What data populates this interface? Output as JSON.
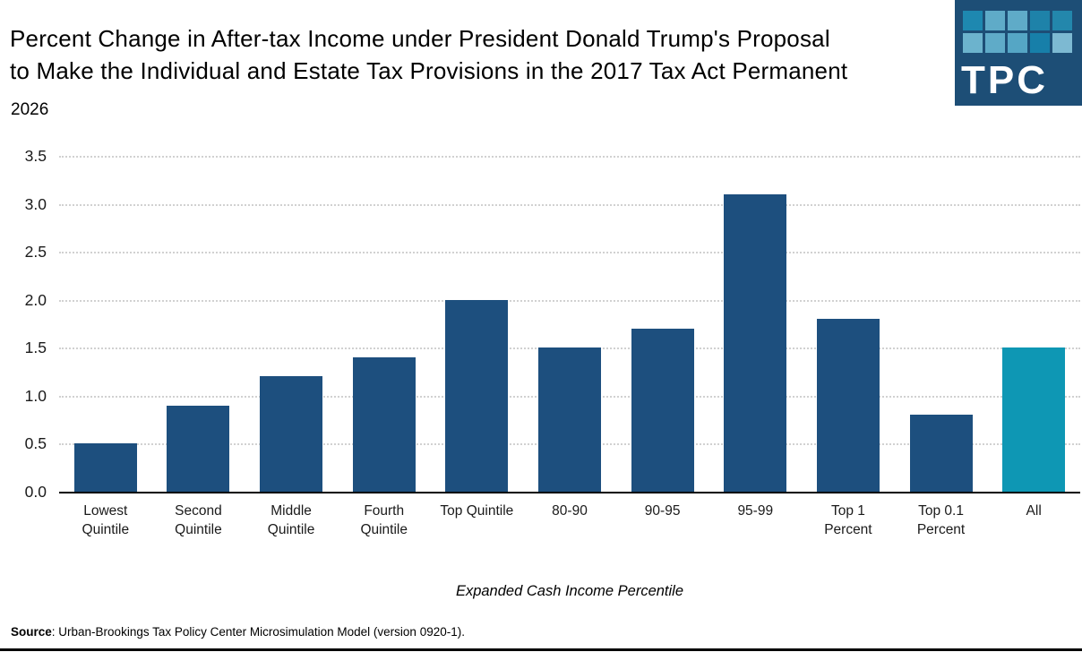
{
  "header": {
    "title_lines": [
      "Percent Change in After-tax Income under President Donald Trump's Proposal",
      "to Make the Individual and Estate Tax Provisions in the 2017 Tax Act Permanent"
    ],
    "subtitle": "2026"
  },
  "logo": {
    "text": "TPC",
    "background": "#1D4E76",
    "square_colors": [
      "#1E88B0",
      "#5FABC8",
      "#5FABC8",
      "#1E82A9",
      "#2387AC",
      "#6CB3CD",
      "#5FABC8",
      "#55A6C5",
      "#177FA9",
      "#7DB9D2"
    ]
  },
  "chart_data": {
    "type": "bar",
    "title": "Percent Change in After-tax Income under President Donald Trump's Proposal to Make the Individual and Estate Tax Provisions in the 2017 Tax Act Permanent",
    "subtitle": "2026",
    "categories": [
      "Lowest Quintile",
      "Second Quintile",
      "Middle Quintile",
      "Fourth Quintile",
      "Top Quintile",
      "80-90",
      "90-95",
      "95-99",
      "Top 1 Percent",
      "Top 0.1 Percent",
      "All"
    ],
    "category_lines": [
      [
        "Lowest",
        "Quintile"
      ],
      [
        "Second",
        "Quintile"
      ],
      [
        "Middle",
        "Quintile"
      ],
      [
        "Fourth",
        "Quintile"
      ],
      [
        "Top Quintile"
      ],
      [
        "80-90"
      ],
      [
        "90-95"
      ],
      [
        "95-99"
      ],
      [
        "Top 1",
        "Percent"
      ],
      [
        "Top 0.1",
        "Percent"
      ],
      [
        "All"
      ]
    ],
    "values": [
      0.5,
      0.9,
      1.2,
      1.4,
      2.0,
      1.5,
      1.7,
      3.1,
      1.8,
      0.8,
      1.5
    ],
    "xlabel": "Expanded Cash Income Percentile",
    "ylabel": "",
    "ylim": [
      0,
      3.5
    ],
    "ytick_step": 0.5,
    "ytick_labels": [
      "0.0",
      "0.5",
      "1.0",
      "1.5",
      "2.0",
      "2.5",
      "3.0",
      "3.5"
    ],
    "grid": "horizontal-dotted",
    "legend": "none",
    "bar_color": "#1D4F7E",
    "highlight_index": 10,
    "highlight_color": "#0E97B4"
  },
  "footer": {
    "source_label": "Source",
    "source_text": ": Urban-Brookings Tax Policy Center Microsimulation Model (version 0920-1)."
  }
}
